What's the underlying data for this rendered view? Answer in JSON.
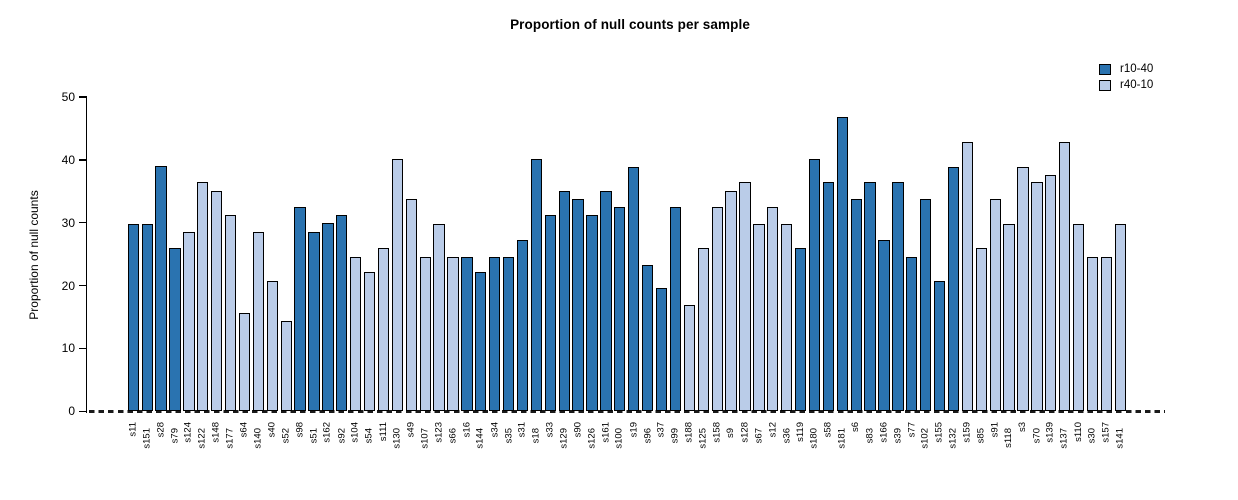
{
  "chart_data": {
    "type": "bar",
    "title": "Proportion of null counts per sample",
    "xlabel": "",
    "ylabel": "Proportion of null counts",
    "ylim": [
      0,
      50
    ],
    "yticks": [
      0,
      10,
      20,
      30,
      40,
      50
    ],
    "grid": false,
    "legend_position": "top-right",
    "zero_line_style": "dashed",
    "bar_border_color": "#000000",
    "legend": [
      {
        "name": "r10-40",
        "color": "#2a73b0"
      },
      {
        "name": "r40-10",
        "color": "#bacce8"
      }
    ],
    "categories": [
      "s11",
      "s151",
      "s28",
      "s79",
      "s124",
      "s122",
      "s148",
      "s177",
      "s64",
      "s140",
      "s40",
      "s52",
      "s98",
      "s51",
      "s162",
      "s92",
      "s104",
      "s54",
      "s111",
      "s130",
      "s49",
      "s107",
      "s123",
      "s66",
      "s16",
      "s144",
      "s34",
      "s35",
      "s31",
      "s18",
      "s33",
      "s129",
      "s90",
      "s126",
      "s161",
      "s100",
      "s19",
      "s96",
      "s37",
      "s99",
      "s188",
      "s125",
      "s158",
      "s9",
      "s128",
      "s67",
      "s12",
      "s36",
      "s119",
      "s180",
      "s58",
      "s181",
      "s6",
      "s83",
      "s166",
      "s39",
      "s77",
      "s102",
      "s155",
      "s132",
      "s159",
      "s85",
      "s91",
      "s118",
      "s3",
      "s70",
      "s139",
      "s137",
      "s110",
      "s30",
      "s157",
      "s141"
    ],
    "values": [
      29.8,
      29.8,
      39.0,
      26.0,
      28.5,
      36.4,
      35.0,
      31.2,
      15.6,
      28.5,
      20.8,
      14.4,
      32.5,
      28.5,
      29.9,
      31.2,
      24.6,
      22.1,
      26.0,
      40.2,
      33.8,
      24.6,
      29.8,
      24.6,
      24.6,
      22.1,
      24.6,
      24.6,
      27.3,
      40.2,
      31.2,
      35.0,
      33.8,
      31.2,
      35.0,
      32.5,
      38.9,
      23.3,
      19.6,
      32.5,
      16.9,
      26.0,
      32.5,
      35.0,
      36.4,
      29.8,
      32.5,
      29.8,
      26.0,
      40.2,
      36.4,
      46.8,
      33.8,
      36.4,
      27.3,
      36.4,
      24.6,
      33.7,
      20.8,
      38.9,
      42.8,
      26.0,
      33.8,
      29.8,
      38.9,
      36.4,
      37.6,
      42.8,
      29.8,
      24.6,
      24.6,
      29.8
    ],
    "groups": [
      "r10-40",
      "r10-40",
      "r10-40",
      "r10-40",
      "r40-10",
      "r40-10",
      "r40-10",
      "r40-10",
      "r40-10",
      "r40-10",
      "r40-10",
      "r40-10",
      "r10-40",
      "r10-40",
      "r10-40",
      "r10-40",
      "r40-10",
      "r40-10",
      "r40-10",
      "r40-10",
      "r40-10",
      "r40-10",
      "r40-10",
      "r40-10",
      "r10-40",
      "r10-40",
      "r10-40",
      "r10-40",
      "r10-40",
      "r10-40",
      "r10-40",
      "r10-40",
      "r10-40",
      "r10-40",
      "r10-40",
      "r10-40",
      "r10-40",
      "r10-40",
      "r10-40",
      "r10-40",
      "r40-10",
      "r40-10",
      "r40-10",
      "r40-10",
      "r40-10",
      "r40-10",
      "r40-10",
      "r40-10",
      "r10-40",
      "r10-40",
      "r10-40",
      "r10-40",
      "r10-40",
      "r10-40",
      "r10-40",
      "r10-40",
      "r10-40",
      "r10-40",
      "r10-40",
      "r10-40",
      "r40-10",
      "r40-10",
      "r40-10",
      "r40-10",
      "r40-10",
      "r40-10",
      "r40-10",
      "r40-10",
      "r40-10",
      "r40-10",
      "r40-10",
      "r40-10"
    ]
  }
}
